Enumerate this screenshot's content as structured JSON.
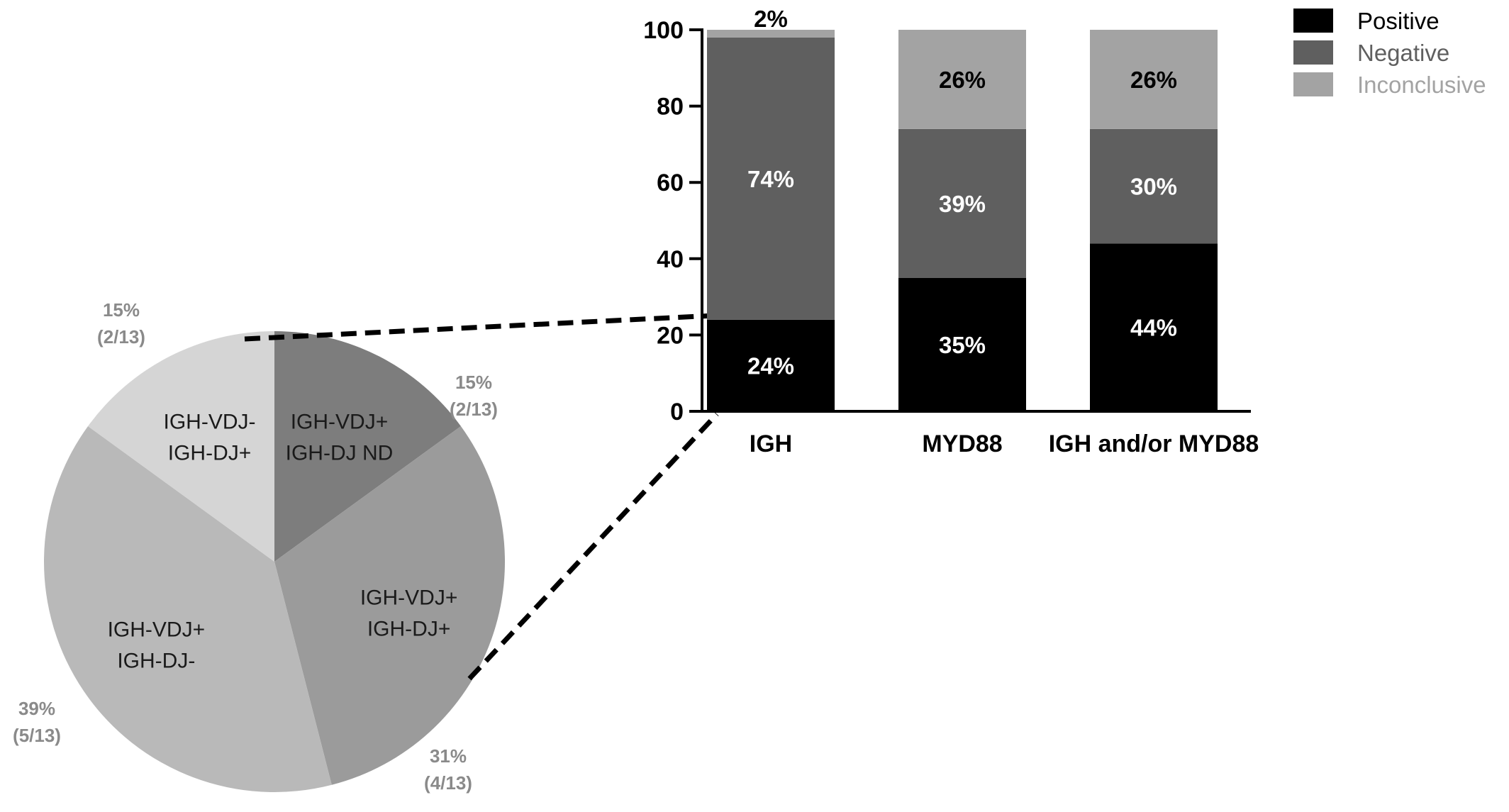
{
  "chart_data": [
    {
      "type": "bar",
      "stacked": true,
      "categories": [
        "IGH",
        "MYD88",
        "IGH and/or MYD88"
      ],
      "ylim": [
        0,
        100
      ],
      "yticks": [
        0,
        20,
        40,
        60,
        80,
        100
      ],
      "legend_position": "top-right",
      "series": [
        {
          "name": "Positive",
          "values": [
            24,
            35,
            44
          ],
          "labels": [
            "24%",
            "35%",
            "44%"
          ],
          "color": "#000000",
          "label_color": "#ffffff"
        },
        {
          "name": "Negative",
          "values": [
            74,
            39,
            30
          ],
          "labels": [
            "74%",
            "39%",
            "30%"
          ],
          "color": "#5f5f5f",
          "label_color": "#ffffff"
        },
        {
          "name": "Inconclusive",
          "values": [
            2,
            26,
            26
          ],
          "labels": [
            "2%",
            "26%",
            "26%"
          ],
          "color": "#a3a3a3",
          "label_color": "#000000"
        }
      ]
    },
    {
      "type": "pie",
      "slices": [
        {
          "label_lines": [
            "IGH-VDJ+",
            "IGH-DJ ND"
          ],
          "value": 15,
          "pct_label": "15%",
          "count_label": "(2/13)",
          "color": "#7d7d7d"
        },
        {
          "label_lines": [
            "IGH-VDJ+",
            "IGH-DJ+"
          ],
          "value": 31,
          "pct_label": "31%",
          "count_label": "(4/13)",
          "color": "#9b9b9b"
        },
        {
          "label_lines": [
            "IGH-VDJ+",
            "IGH-DJ-"
          ],
          "value": 39,
          "pct_label": "39%",
          "count_label": "(5/13)",
          "color": "#b9b9b9"
        },
        {
          "label_lines": [
            "IGH-VDJ-",
            "IGH-DJ+"
          ],
          "value": 15,
          "pct_label": "15%",
          "count_label": "(2/13)",
          "color": "#d5d5d5"
        }
      ]
    }
  ]
}
